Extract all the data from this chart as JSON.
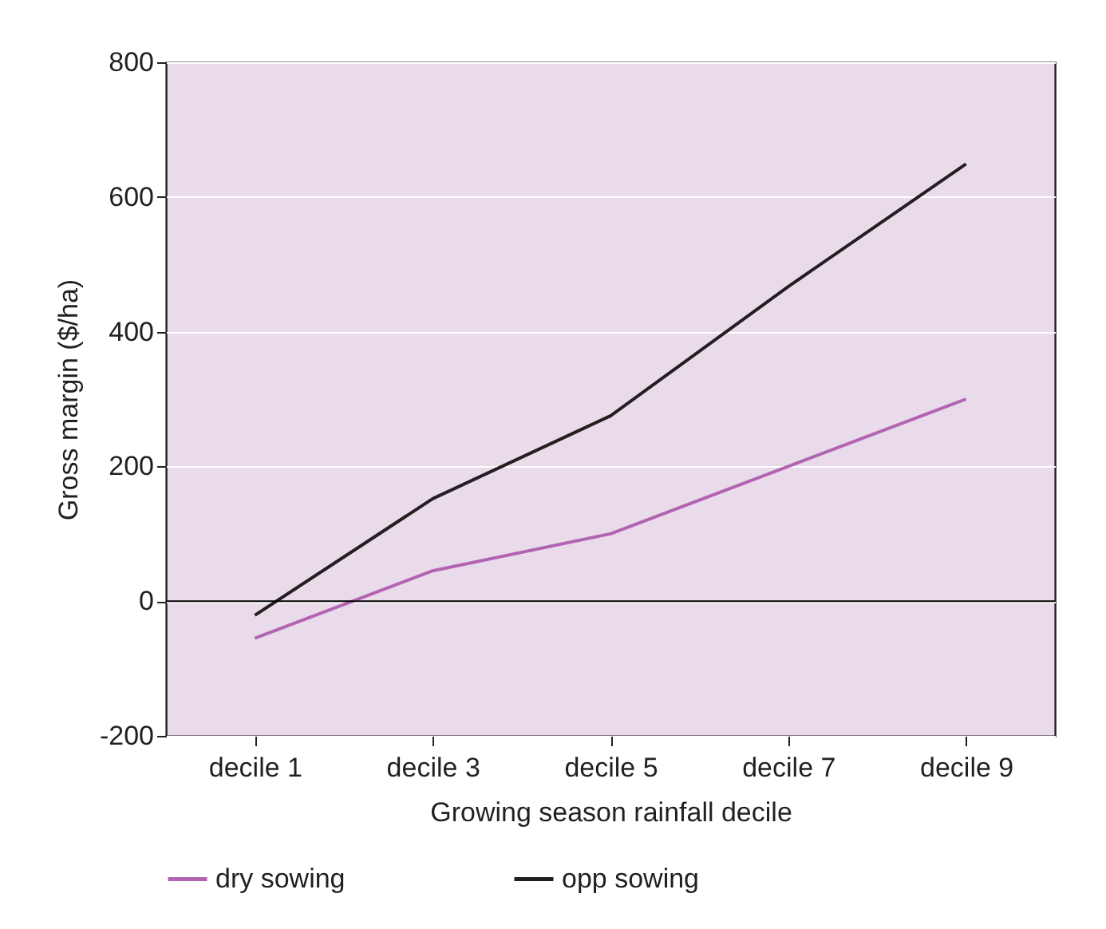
{
  "chart_data": {
    "type": "line",
    "xlabel": "Growing season rainfall decile",
    "ylabel": "Gross margin ($/ha)",
    "categories": [
      "decile 1",
      "decile 3",
      "decile 5",
      "decile 7",
      "decile 9"
    ],
    "series": [
      {
        "name": "dry sowing",
        "color": "#b264b2",
        "values": [
          -55,
          45,
          100,
          200,
          300
        ]
      },
      {
        "name": "opp sowing",
        "color": "#231f20",
        "values": [
          -21,
          152,
          275,
          467,
          649
        ]
      }
    ],
    "ylim": [
      -200,
      800
    ],
    "yticks": [
      -200,
      0,
      200,
      400,
      600,
      800
    ],
    "grid": "y",
    "legend": "bottom",
    "marker": "none",
    "line_style": "solid",
    "ref_lines": [
      {
        "axis": "y",
        "value": 0,
        "color": "#000000"
      }
    ]
  }
}
